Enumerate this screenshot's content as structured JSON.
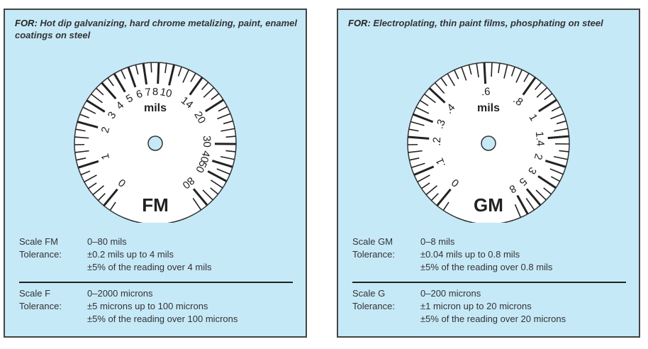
{
  "panels": [
    {
      "for_label": "FOR:",
      "for_text": "Hot dip galvanizing, hard chrome metalizing, paint, enamel coatings on steel",
      "unit": "mils",
      "scale_name": "FM",
      "dial_labels": [
        "0",
        "1",
        "2",
        "3",
        "4",
        "5",
        "6",
        "7",
        "8",
        "10",
        "14",
        "20",
        "30",
        "40",
        "50",
        "80"
      ],
      "spec1": {
        "scale_label": "Scale FM",
        "range": "0–80 mils",
        "tol_label": "Tolerance:",
        "tol1": "±0.2 mils up to 4 mils",
        "tol2": "±5% of the reading over 4 mils"
      },
      "spec2": {
        "scale_label": "Scale F",
        "range": "0–2000 microns",
        "tol_label": "Tolerance:",
        "tol1": "±5 microns up to 100 microns",
        "tol2": "±5% of the reading over 100 microns"
      }
    },
    {
      "for_label": "FOR:",
      "for_text": "Electroplating, thin paint films, phosphating on steel",
      "unit": "mils",
      "scale_name": "GM",
      "dial_labels": [
        "0",
        ".1",
        ".2",
        ".3",
        ".4",
        ".6",
        ".8",
        "1",
        "1.4",
        "2",
        "3",
        "5",
        "8"
      ],
      "spec1": {
        "scale_label": "Scale GM",
        "range": "0–8 mils",
        "tol_label": "Tolerance:",
        "tol1": "±0.04 mils up to 0.8 mils",
        "tol2": "±5% of the reading over 0.8 mils"
      },
      "spec2": {
        "scale_label": "Scale G",
        "range": "0–200 microns",
        "tol_label": "Tolerance:",
        "tol1": "±1 micron up to 20 microns",
        "tol2": "±5% of the reading over 20 microns"
      }
    }
  ],
  "colors": {
    "panel_bg": "#c6e9f8",
    "border": "#444444",
    "dial_face": "#ffffff",
    "ink": "#222222"
  }
}
